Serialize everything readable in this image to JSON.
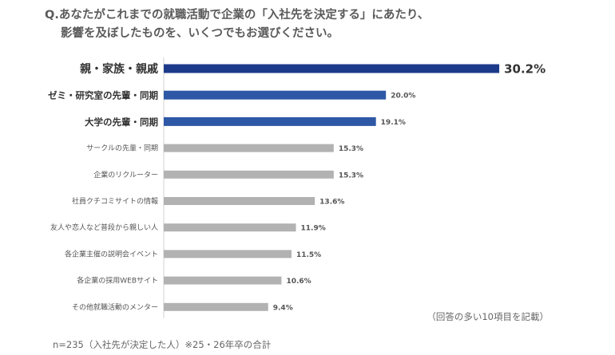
{
  "question": {
    "line1": "Q.あなたがこれまでの就職活動で企業の「入社先を決定する」にあたり、",
    "line2": "影響を及ぼしたものを、いくつでもお選びください。"
  },
  "note_right": "（回答の多い10項目を記載）",
  "footnote": "n=235（入社先が決定した人）※25・26年卒の合計",
  "colors": {
    "top1": "#1d3a8a",
    "top3": "#2e58a6",
    "rest": "#b2b2b2"
  },
  "chart_data": {
    "type": "bar",
    "orientation": "horizontal",
    "unit": "%",
    "xlim": [
      0,
      35
    ],
    "grid": false,
    "categories": [
      "親・家族・親戚",
      "ゼミ・研究室の先輩・同期",
      "大学の先輩・同期",
      "サークルの先輩・同期",
      "企業のリクルーター",
      "社員クチコミサイトの情報",
      "友人や恋人など普段から親しい人",
      "各企業主催の説明会イベント",
      "各企業の採用WEBサイト",
      "その他就職活動のメンター"
    ],
    "values": [
      30.2,
      20.0,
      19.1,
      15.3,
      15.3,
      13.6,
      11.9,
      11.5,
      10.6,
      9.4
    ],
    "value_labels": [
      "30.2%",
      "20.0%",
      "19.1%",
      "15.3%",
      "15.3%",
      "13.6%",
      "11.9%",
      "11.5%",
      "10.6%",
      "9.4%"
    ]
  }
}
